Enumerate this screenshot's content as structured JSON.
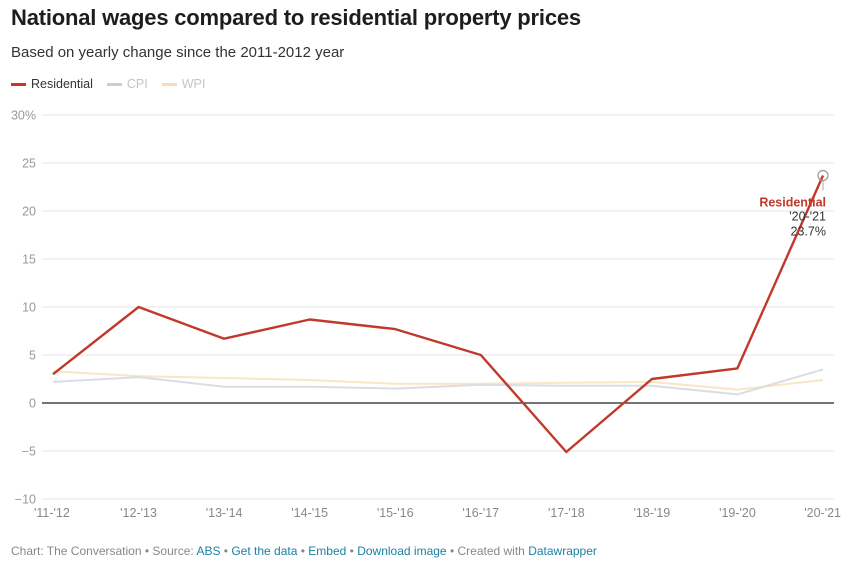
{
  "header": {
    "title": "National wages compared to residential property prices",
    "subtitle": "Based on yearly change since the 2011-2012 year"
  },
  "legend": [
    {
      "label": "Residential",
      "color": "#c0392b"
    },
    {
      "label": "CPI",
      "color": "#cccccc"
    },
    {
      "label": "WPI",
      "color": "#f9ddb0"
    }
  ],
  "footer": {
    "prefix": "Chart: The Conversation",
    "source_label": "Source:",
    "source_link": "ABS",
    "get_data": "Get the data",
    "embed": "Embed",
    "download": "Download image",
    "created_label": "Created with",
    "created_link": "Datawrapper",
    "separator": "•"
  },
  "chart_data": {
    "type": "line",
    "title": "National wages compared to residential property prices",
    "subtitle": "Based on yearly change since the 2011-2012 year",
    "xlabel": "",
    "ylabel": "",
    "categories": [
      "'11-'12",
      "'12-'13",
      "'13-'14",
      "'14-'15",
      "'15-'16",
      "'16-'17",
      "'17-'18",
      "'18-'19",
      "'19-'20",
      "'20-'21"
    ],
    "ylim": [
      -10,
      30
    ],
    "yticks": [
      30,
      25,
      20,
      15,
      10,
      5,
      0,
      -5,
      -10
    ],
    "ytick_labels": [
      "30%",
      "25",
      "20",
      "15",
      "10",
      "5",
      "0",
      "−5",
      "−10"
    ],
    "grid": true,
    "legend_position": "top-left",
    "series": [
      {
        "name": "WPI",
        "color": "#f9e6c4",
        "values": [
          3.3,
          2.8,
          2.6,
          2.4,
          2.0,
          2.0,
          2.1,
          2.2,
          1.4,
          2.4
        ]
      },
      {
        "name": "CPI",
        "color": "#dcdde3",
        "values": [
          2.2,
          2.7,
          1.7,
          1.7,
          1.5,
          1.9,
          1.8,
          1.8,
          0.9,
          3.5
        ]
      },
      {
        "name": "Residential",
        "color": "#c0392b",
        "values": [
          3.0,
          10.0,
          6.7,
          8.7,
          7.7,
          5.0,
          -5.1,
          2.5,
          3.6,
          23.7
        ]
      }
    ],
    "annotation": {
      "series": "Residential",
      "category": "'20-'21",
      "label": "Residential",
      "period": "'20-'21",
      "value_text": "23.7%"
    }
  }
}
